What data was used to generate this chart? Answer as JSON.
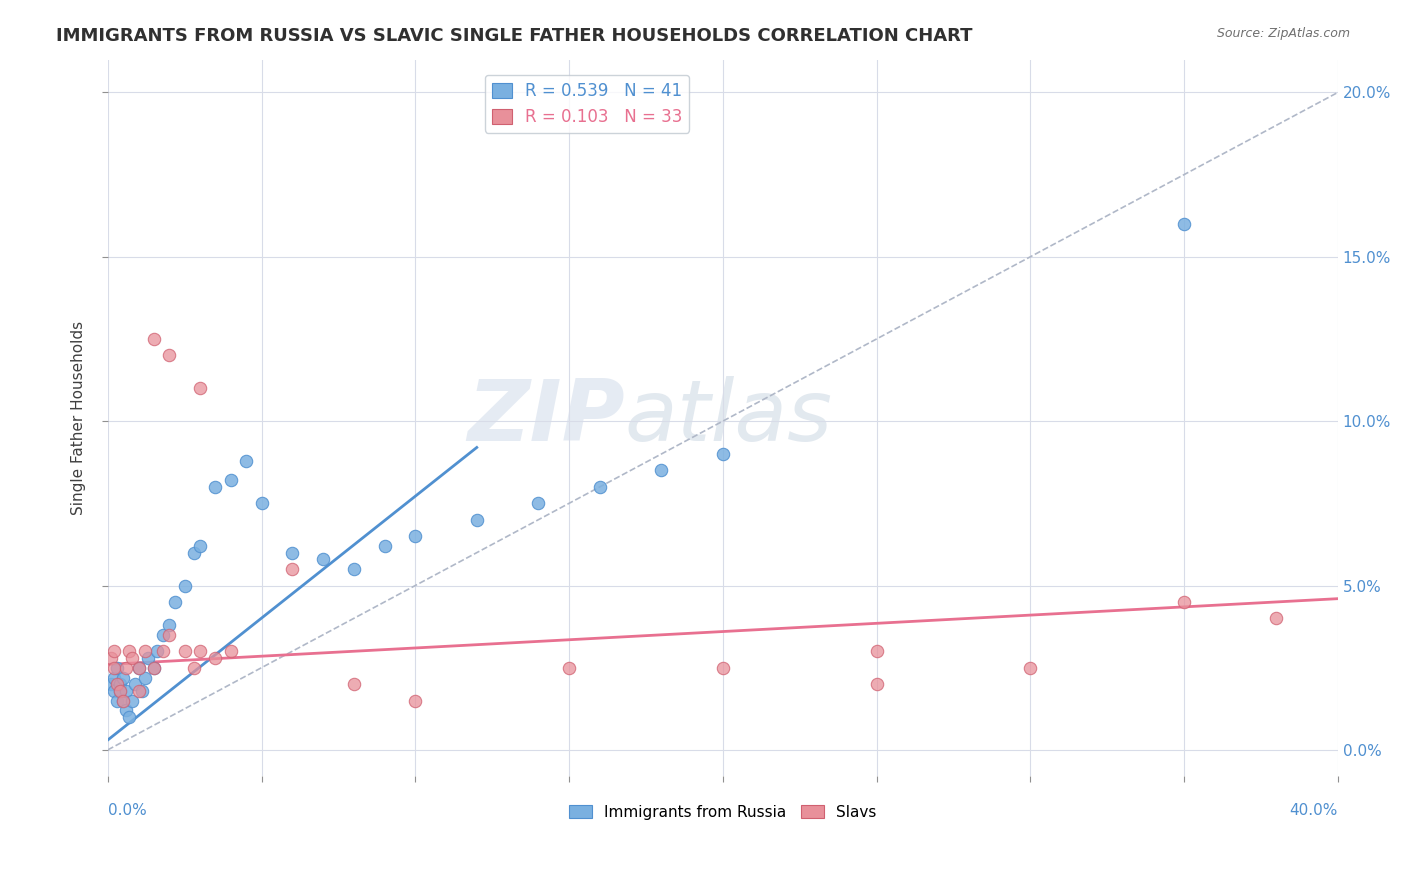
{
  "title": "IMMIGRANTS FROM RUSSIA VS SLAVIC SINGLE FATHER HOUSEHOLDS CORRELATION CHART",
  "source": "Source: ZipAtlas.com",
  "ylabel": "Single Father Households",
  "watermark_zip": "ZIP",
  "watermark_atlas": "atlas",
  "legend_entries": [
    {
      "label": "R = 0.539   N = 41",
      "color": "#a8c8f0"
    },
    {
      "label": "R = 0.103   N = 33",
      "color": "#f0b0c0"
    }
  ],
  "legend_labels": [
    "Immigrants from Russia",
    "Slavs"
  ],
  "blue_color": "#7ab0e0",
  "pink_color": "#e8909a",
  "blue_line_color": "#5090d0",
  "pink_line_color": "#e87090",
  "dashed_line_color": "#b0b8c8",
  "blue_scatter_x": [
    0.001,
    0.002,
    0.002,
    0.003,
    0.003,
    0.004,
    0.004,
    0.005,
    0.005,
    0.006,
    0.006,
    0.007,
    0.008,
    0.009,
    0.01,
    0.011,
    0.012,
    0.013,
    0.015,
    0.016,
    0.018,
    0.02,
    0.022,
    0.025,
    0.028,
    0.03,
    0.035,
    0.04,
    0.045,
    0.05,
    0.06,
    0.07,
    0.08,
    0.09,
    0.1,
    0.12,
    0.14,
    0.16,
    0.18,
    0.2,
    0.35
  ],
  "blue_scatter_y": [
    0.02,
    0.018,
    0.022,
    0.015,
    0.025,
    0.018,
    0.02,
    0.015,
    0.022,
    0.012,
    0.018,
    0.01,
    0.015,
    0.02,
    0.025,
    0.018,
    0.022,
    0.028,
    0.025,
    0.03,
    0.035,
    0.038,
    0.045,
    0.05,
    0.06,
    0.062,
    0.08,
    0.082,
    0.088,
    0.075,
    0.06,
    0.058,
    0.055,
    0.062,
    0.065,
    0.07,
    0.075,
    0.08,
    0.085,
    0.09,
    0.16
  ],
  "pink_scatter_x": [
    0.001,
    0.002,
    0.002,
    0.003,
    0.004,
    0.005,
    0.006,
    0.007,
    0.008,
    0.01,
    0.012,
    0.015,
    0.018,
    0.02,
    0.025,
    0.028,
    0.03,
    0.035,
    0.04,
    0.06,
    0.08,
    0.1,
    0.15,
    0.2,
    0.25,
    0.3,
    0.35,
    0.38,
    0.25,
    0.03,
    0.02,
    0.015,
    0.01
  ],
  "pink_scatter_y": [
    0.028,
    0.025,
    0.03,
    0.02,
    0.018,
    0.015,
    0.025,
    0.03,
    0.028,
    0.025,
    0.03,
    0.025,
    0.03,
    0.035,
    0.03,
    0.025,
    0.03,
    0.028,
    0.03,
    0.055,
    0.02,
    0.015,
    0.025,
    0.025,
    0.03,
    0.025,
    0.045,
    0.04,
    0.02,
    0.11,
    0.12,
    0.125,
    0.018
  ],
  "blue_line_x": [
    0.0,
    0.12
  ],
  "blue_line_y": [
    0.003,
    0.092
  ],
  "pink_line_x": [
    0.0,
    0.4
  ],
  "pink_line_y": [
    0.026,
    0.046
  ],
  "dashed_line_x": [
    0.0,
    0.4
  ],
  "dashed_line_y": [
    0.0,
    0.2
  ],
  "xlim": [
    0.0,
    0.4
  ],
  "ylim": [
    -0.008,
    0.21
  ],
  "bg_color": "#ffffff",
  "grid_color": "#d8dce8",
  "title_color": "#303030",
  "source_color": "#707070",
  "tick_color": "#5090d0"
}
